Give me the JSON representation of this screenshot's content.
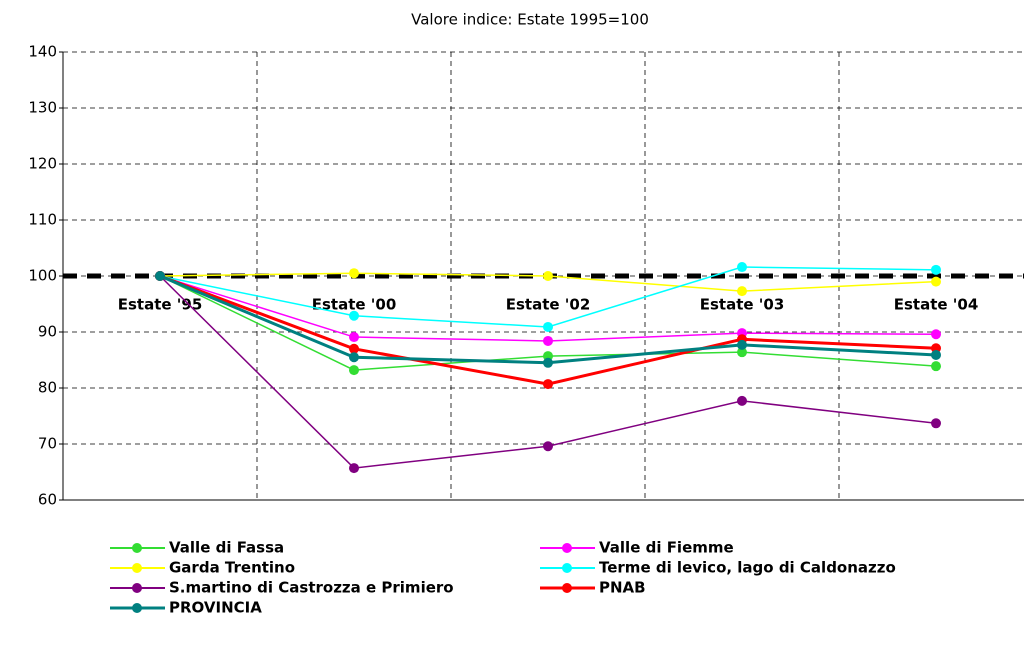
{
  "chart_data": {
    "type": "line",
    "title": "Valore indice: Estate 1995=100",
    "categories": [
      "Estate '95",
      "Estate '00",
      "Estate '02",
      "Estate '03",
      "Estate '04"
    ],
    "series": [
      {
        "name": "Valle di Fassa",
        "color": "#33dd33",
        "values": [
          100,
          83.2,
          85.7,
          86.4,
          83.9
        ]
      },
      {
        "name": "Valle di Fiemme",
        "color": "#ff00ff",
        "values": [
          100,
          89.1,
          88.4,
          89.8,
          89.6
        ]
      },
      {
        "name": "Garda Trentino",
        "color": "#ffff00",
        "values": [
          100,
          100.5,
          100,
          97.3,
          99
        ]
      },
      {
        "name": "Terme di levico, lago di Caldonazzo",
        "color": "#00ffff",
        "values": [
          100,
          92.9,
          90.9,
          101.6,
          101.1
        ]
      },
      {
        "name": "S.martino di Castrozza e Primiero",
        "color": "#800080",
        "values": [
          100,
          65.7,
          69.6,
          77.7,
          73.7
        ]
      },
      {
        "name": "PNAB",
        "color": "#ff0000",
        "values": [
          100,
          87,
          80.7,
          88.7,
          87.1
        ],
        "width": 3
      },
      {
        "name": "PROVINCIA",
        "color": "#008080",
        "values": [
          100,
          85.5,
          84.5,
          87.7,
          85.9
        ],
        "width": 3
      }
    ],
    "reference_line": 100,
    "ylim": [
      60,
      140
    ],
    "yticks": [
      60,
      70,
      80,
      90,
      100,
      110,
      120,
      130,
      140
    ],
    "grid": true
  }
}
